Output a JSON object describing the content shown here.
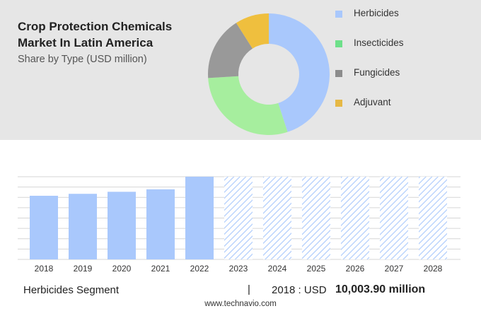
{
  "header": {
    "title": "Crop Protection Chemicals Market In Latin America",
    "subtitle": "Share by Type (USD million)"
  },
  "colors": {
    "herbicides": "#a9c8fc",
    "insecticides": "#a6ee9e",
    "fungicides": "#999999",
    "adjuvant": "#efbf3e",
    "forecast_hatch": "#a9c8fc"
  },
  "legend": [
    {
      "label": "Herbicides",
      "color": "#a9c8fc"
    },
    {
      "label": "Insecticides",
      "color": "#6ee08a"
    },
    {
      "label": "Fungicides",
      "color": "#8c8c8c"
    },
    {
      "label": "Adjuvant",
      "color": "#e6b845"
    }
  ],
  "footer": {
    "segment": "Herbicides Segment",
    "divider": "|",
    "year_label": "2018 : USD",
    "value": "10,003.90 million"
  },
  "website": "www.technavio.com",
  "chart_data": [
    {
      "type": "pie",
      "subtype": "donut",
      "title": "Share by Type (USD million)",
      "slices": [
        {
          "name": "Herbicides",
          "value": 45
        },
        {
          "name": "Insecticides",
          "value": 29
        },
        {
          "name": "Fungicides",
          "value": 17
        },
        {
          "name": "Adjuvant",
          "value": 9
        }
      ]
    },
    {
      "type": "bar",
      "categories": [
        "2018",
        "2019",
        "2020",
        "2021",
        "2022",
        "2023",
        "2024",
        "2025",
        "2026",
        "2027",
        "2028"
      ],
      "values": [
        10003.9,
        10310,
        10630,
        11020,
        13000,
        13000,
        13000,
        13000,
        13000,
        13000,
        13000
      ],
      "forecast_from": "2023",
      "ylim": [
        0,
        13000
      ],
      "grid": true
    }
  ]
}
